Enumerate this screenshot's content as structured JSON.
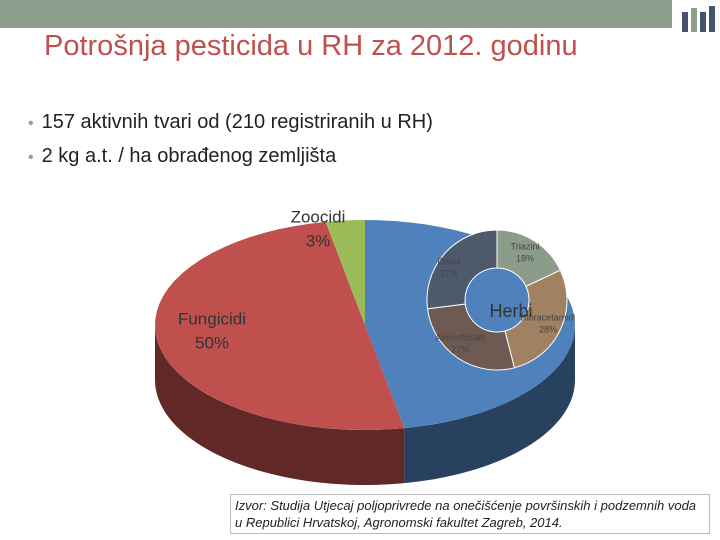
{
  "slide": {
    "title": "Potrošnja pesticida u RH za 2012. godinu",
    "bullets": [
      "157 aktivnih tvari od (210 registriranih u RH)",
      "2 kg a.t. / ha obrađenog zemljišta"
    ],
    "source": "Izvor: Studija Utjecaj poljoprivrede na onečišćenje površinskih i podzemnih voda u Republici Hrvatskoj, Agronomski fakultet Zagreb, 2014."
  },
  "chart_data": [
    {
      "type": "pie",
      "categories": [
        "Herbi",
        "Fungicidi",
        "Zoocidi"
      ],
      "values": [
        47,
        50,
        3
      ],
      "value_labels": [
        null,
        "50%",
        "3%"
      ],
      "colors": [
        "#4f81bd",
        "#c0504d",
        "#9bbb59"
      ]
    },
    {
      "type": "donut",
      "categories": [
        "Triazini",
        "Kloracetamidi",
        "Aminofosfati",
        "Ostali"
      ],
      "values": [
        18,
        28,
        27,
        27
      ],
      "value_labels": [
        "18%",
        "28%",
        "27%",
        "27%"
      ],
      "colors": [
        "#8c9c8a",
        "#a08262",
        "#6e5a52",
        "#4e5a6c"
      ]
    }
  ]
}
